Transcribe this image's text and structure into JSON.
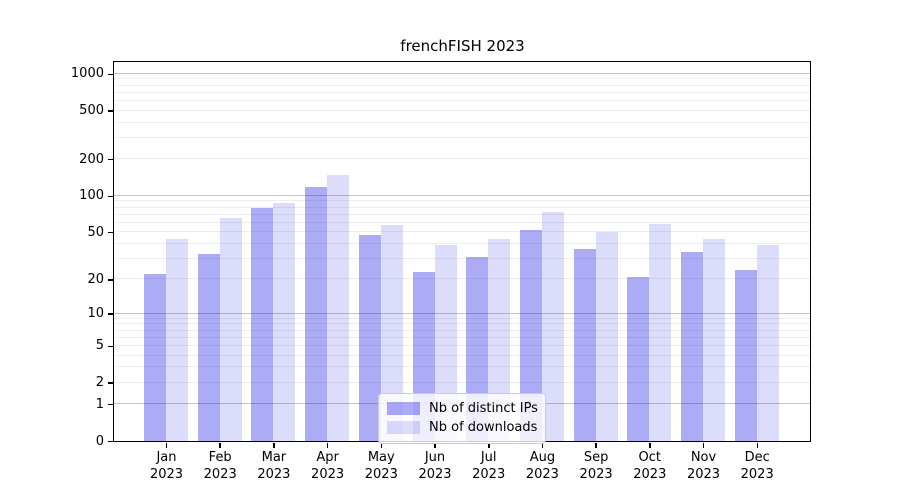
{
  "title": "frenchFISH 2023",
  "chart_data": {
    "type": "bar",
    "title": "frenchFISH 2023",
    "categories": [
      "Jan 2023",
      "Feb 2023",
      "Mar 2023",
      "Apr 2023",
      "May 2023",
      "Jun 2023",
      "Jul 2023",
      "Aug 2023",
      "Sep 2023",
      "Oct 2023",
      "Nov 2023",
      "Dec 2023"
    ],
    "x_months": [
      "Jan",
      "Feb",
      "Mar",
      "Apr",
      "May",
      "Jun",
      "Jul",
      "Aug",
      "Sep",
      "Oct",
      "Nov",
      "Dec"
    ],
    "x_year": "2023",
    "series": [
      {
        "name": "Nb of distinct IPs",
        "color": "rgba(10,10,230,0.34)",
        "values": [
          22,
          33,
          80,
          119,
          47,
          23,
          31,
          52,
          36,
          21,
          34,
          24
        ]
      },
      {
        "name": "Nb of downloads",
        "color": "rgba(10,10,230,0.14)",
        "values": [
          44,
          65,
          88,
          148,
          57,
          39,
          44,
          73,
          50,
          58,
          44,
          39
        ]
      }
    ],
    "y_axis": {
      "scale": "log10(value+1)",
      "tick_labels": [
        0,
        1,
        2,
        5,
        10,
        20,
        50,
        100,
        200,
        500,
        1000
      ],
      "range": [
        0,
        1250
      ],
      "major_gridlines": [
        1,
        10,
        100,
        1000
      ]
    },
    "grid": {
      "orientation": "horizontal",
      "major_color": "#c6c6c6",
      "minor_color": "#eeeeee"
    },
    "legend": {
      "position": "inside-bottom-center",
      "items": [
        "Nb of distinct IPs",
        "Nb of downloads"
      ]
    }
  },
  "colors": {
    "background": "#ffffff",
    "axis": "#000000",
    "text": "#000000"
  }
}
